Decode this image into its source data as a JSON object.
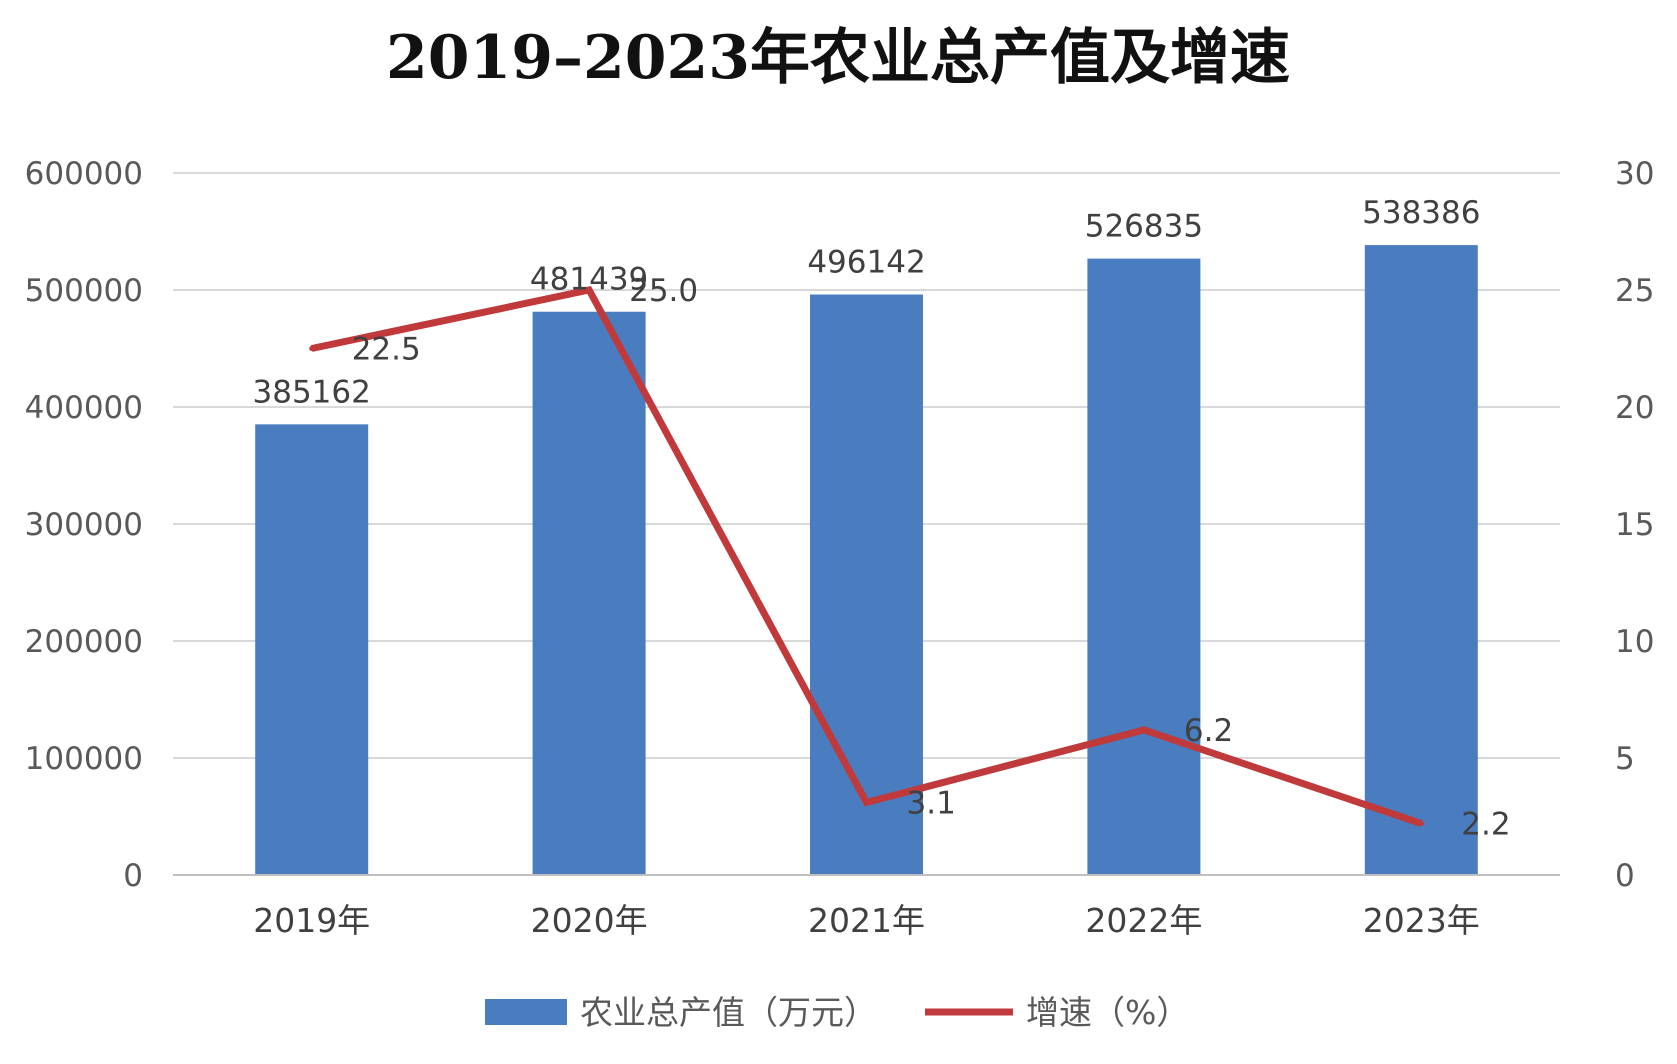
{
  "chart_data": {
    "type": "bar",
    "title": "2019–2023年农业总产值及增速",
    "categories": [
      "2019年",
      "2020年",
      "2021年",
      "2022年",
      "2023年"
    ],
    "series": [
      {
        "name": "农业总产值（万元）",
        "type": "bar",
        "axis": "left",
        "values": [
          385162,
          481439,
          496142,
          526835,
          538386
        ],
        "labels": [
          "385162",
          "481439",
          "496142",
          "526835",
          "538386"
        ],
        "color": "#4a7cc0"
      },
      {
        "name": "增速（%）",
        "type": "line",
        "axis": "right",
        "values": [
          22.5,
          25.0,
          3.1,
          6.2,
          2.2
        ],
        "labels": [
          "22.5",
          "25.0",
          "3.1",
          "6.2",
          "2.2"
        ],
        "color": "#c0393b"
      }
    ],
    "y_left": {
      "min": 0,
      "max": 600000,
      "ticks": [
        "0",
        "100000",
        "200000",
        "300000",
        "400000",
        "500000",
        "600000"
      ]
    },
    "y_right": {
      "min": 0,
      "max": 30,
      "ticks": [
        "0",
        "5",
        "10",
        "15",
        "20",
        "25",
        "30"
      ]
    },
    "grid": true,
    "legend_position": "bottom"
  }
}
